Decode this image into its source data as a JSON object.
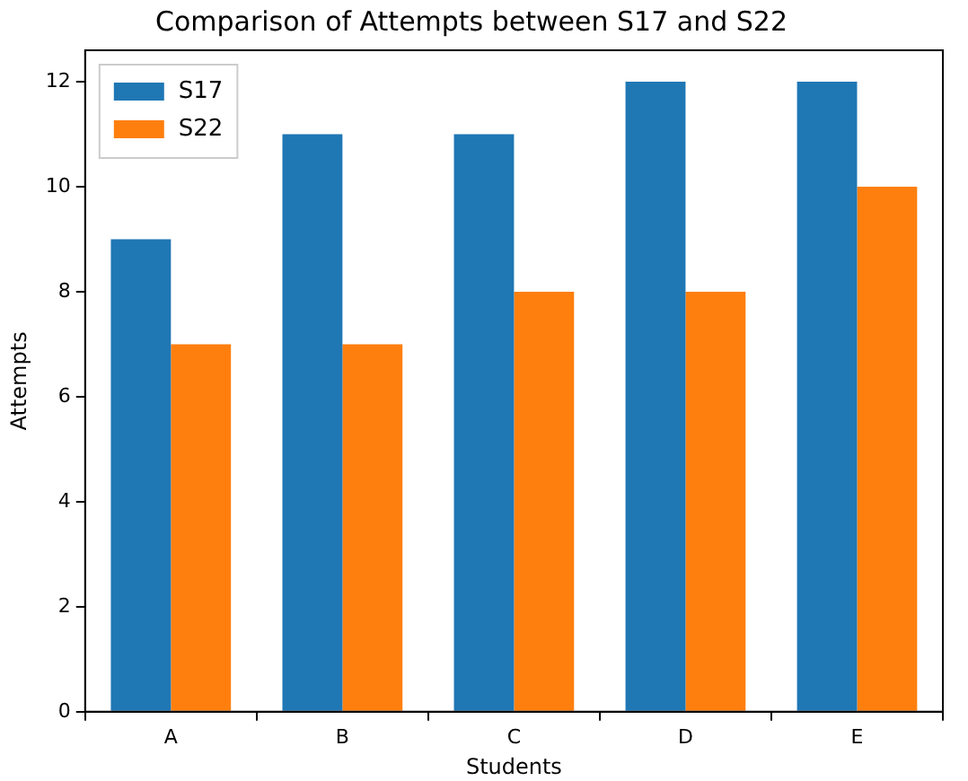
{
  "chart_data": {
    "type": "bar",
    "title": "Comparison of Attempts between S17 and S22",
    "xlabel": "Students",
    "ylabel": "Attempts",
    "categories": [
      "A",
      "B",
      "C",
      "D",
      "E"
    ],
    "series": [
      {
        "name": "S17",
        "color": "#1f77b4",
        "values": [
          9,
          11,
          11,
          12,
          12
        ]
      },
      {
        "name": "S22",
        "color": "#ff7f0e",
        "values": [
          7,
          7,
          8,
          8,
          10
        ]
      }
    ],
    "ylim": [
      0,
      12.6
    ],
    "yticks": [
      0,
      2,
      4,
      6,
      8,
      10,
      12
    ],
    "grid": false,
    "legend": "top left"
  }
}
